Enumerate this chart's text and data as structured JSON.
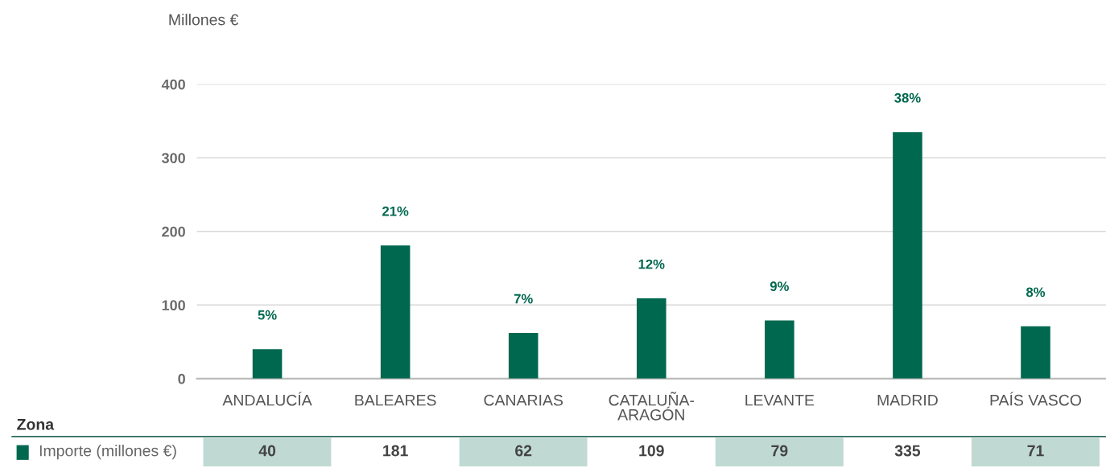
{
  "chart_data": {
    "type": "bar",
    "ylabel": "Millones €",
    "categories": [
      "ANDALUCÍA",
      "BALEARES",
      "CANARIAS",
      "CATALUÑA-ARAGÓN",
      "LEVANTE",
      "MADRID",
      "PAÍS VASCO"
    ],
    "series": [
      {
        "name": "Importe (millones €)",
        "color": "#00684f",
        "values": [
          40,
          181,
          62,
          109,
          79,
          335,
          71
        ]
      }
    ],
    "annotations": [
      "Zona",
      {
        "text": "5%",
        "x": "ANDALUCÍA",
        "y": 40
      },
      {
        "text": "21%",
        "x": "BALEARES",
        "y": 181
      },
      {
        "text": "7%",
        "x": "CANARIAS",
        "y": 62
      },
      {
        "text": "12%",
        "x": "CATALUÑA-ARAGÓN",
        "y": 109
      },
      {
        "text": "9%",
        "x": "LEVANTE",
        "y": 79
      },
      {
        "text": "38%",
        "x": "MADRID",
        "y": 335
      },
      {
        "text": "8%",
        "x": "PAÍS VASCO",
        "y": 71
      }
    ],
    "ylim": [
      0,
      400
    ],
    "yticks": [
      0,
      100,
      200,
      300,
      400
    ],
    "grid": "y",
    "data_labels": true
  }
}
